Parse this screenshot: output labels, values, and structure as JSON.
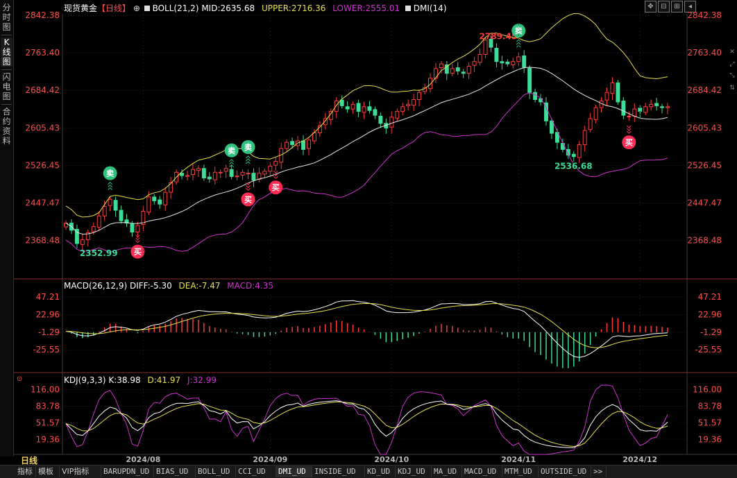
{
  "sidebar": {
    "tabs": [
      {
        "label": "分时图"
      },
      {
        "label": "K线图"
      },
      {
        "label": "闪电图"
      },
      {
        "label": "合约资料"
      }
    ]
  },
  "header": {
    "symbol": "现货黄金",
    "period_tag": "【日线】",
    "indicator": "BOLL(21,2)",
    "mid": "MID:2635.68",
    "upper": "UPPER:2716.36",
    "lower": "LOWER:2555.01",
    "extra": "DMI(14)"
  },
  "macd_header": {
    "title": "MACD(26,12,9)",
    "diff": "DIFF:-5.30",
    "dea": "DEA:-7.47",
    "macd": "MACD:4.35"
  },
  "kdj_header": {
    "title": "KDJ(9,3,3)",
    "k": "K:38.98",
    "d": "D:41.97",
    "j": "J:32.99"
  },
  "colors": {
    "up": "#ff3b3b",
    "down": "#3ddc97",
    "boll_mid": "#e8e8e8",
    "boll_upper": "#e6e04a",
    "boll_lower": "#cc33cc",
    "axis_text": "#ff4d4d",
    "grid": "#262626"
  },
  "chart_data": [
    {
      "type": "candlestick",
      "name": "price",
      "y_ticks": [
        "2842.38",
        "2763.40",
        "2684.42",
        "2605.43",
        "2526.45",
        "2447.47",
        "2368.48"
      ],
      "y_tick_values": [
        2842.38,
        2763.4,
        2684.42,
        2605.43,
        2526.45,
        2447.47,
        2368.48
      ],
      "ylim": [
        2330,
        2842.38
      ],
      "x_ticks": [
        {
          "label": "2024/08",
          "index": 14
        },
        {
          "label": "2024/09",
          "index": 37
        },
        {
          "label": "2024/10",
          "index": 59
        },
        {
          "label": "2024/11",
          "index": 82
        },
        {
          "label": "2024/12",
          "index": 104
        }
      ],
      "annotations": [
        {
          "text": "2352.99",
          "index": 2,
          "value": 2352.99
        },
        {
          "text": "2536.68",
          "index": 88,
          "value": 2536.68
        },
        {
          "text": "2789.45",
          "index": 83,
          "value": 2789.45
        }
      ],
      "signals": [
        {
          "type": "sell",
          "text": "卖",
          "index": 8
        },
        {
          "type": "buy",
          "text": "买",
          "index": 13
        },
        {
          "type": "sell",
          "text": "卖",
          "index": 30
        },
        {
          "type": "buy",
          "text": "买",
          "index": 33
        },
        {
          "type": "sell",
          "text": "卖",
          "index": 33
        },
        {
          "type": "buy",
          "text": "买",
          "index": 38
        },
        {
          "type": "sell",
          "text": "卖",
          "index": 82
        },
        {
          "type": "buy",
          "text": "买",
          "index": 102
        }
      ],
      "close": [
        2405,
        2390,
        2362,
        2370,
        2385,
        2398,
        2420,
        2440,
        2455,
        2432,
        2410,
        2405,
        2386,
        2400,
        2430,
        2460,
        2452,
        2445,
        2470,
        2490,
        2512,
        2505,
        2505,
        2518,
        2520,
        2500,
        2498,
        2512,
        2512,
        2520,
        2503,
        2504,
        2512,
        2510,
        2495,
        2510,
        2514,
        2525,
        2535,
        2562,
        2575,
        2570,
        2578,
        2560,
        2580,
        2595,
        2610,
        2625,
        2640,
        2662,
        2652,
        2645,
        2655,
        2640,
        2650,
        2642,
        2632,
        2615,
        2605,
        2628,
        2640,
        2650,
        2655,
        2665,
        2680,
        2690,
        2710,
        2730,
        2740,
        2720,
        2730,
        2725,
        2720,
        2735,
        2745,
        2760,
        2790,
        2775,
        2745,
        2742,
        2740,
        2745,
        2755,
        2733,
        2680,
        2665,
        2660,
        2620,
        2594,
        2575,
        2560,
        2548,
        2545,
        2570,
        2600,
        2625,
        2648,
        2662,
        2680,
        2700,
        2660,
        2632,
        2630,
        2645,
        2640,
        2650,
        2655,
        2652,
        2648,
        2650
      ]
    },
    {
      "type": "bar+line",
      "name": "macd",
      "y_ticks": [
        "47.21",
        "22.96",
        "-1.29",
        "-25.55"
      ],
      "y_tick_values": [
        47.21,
        22.96,
        -1.29,
        -25.55
      ],
      "ylim": [
        -55,
        55
      ]
    },
    {
      "type": "line",
      "name": "kdj",
      "y_ticks": [
        "116.00",
        "83.78",
        "51.57",
        "19.36"
      ],
      "y_tick_values": [
        116.0,
        83.78,
        51.57,
        19.36
      ],
      "ylim": [
        -10,
        125
      ]
    }
  ],
  "footer": {
    "period": "日线",
    "tabs": [
      "指标",
      "模板",
      "VIP指标",
      "BARUPDN_UD",
      "BIAS_UD",
      "BOLL_UD",
      "CCI_UD",
      "DMI_UD",
      "INSIDE_UD",
      "KD_UD",
      "KDJ_UD",
      "MA_UD",
      "MACD_UD",
      "MTM_UD",
      "OUTSIDE_UD",
      ">>"
    ],
    "active_tab": "DMI_UD"
  }
}
